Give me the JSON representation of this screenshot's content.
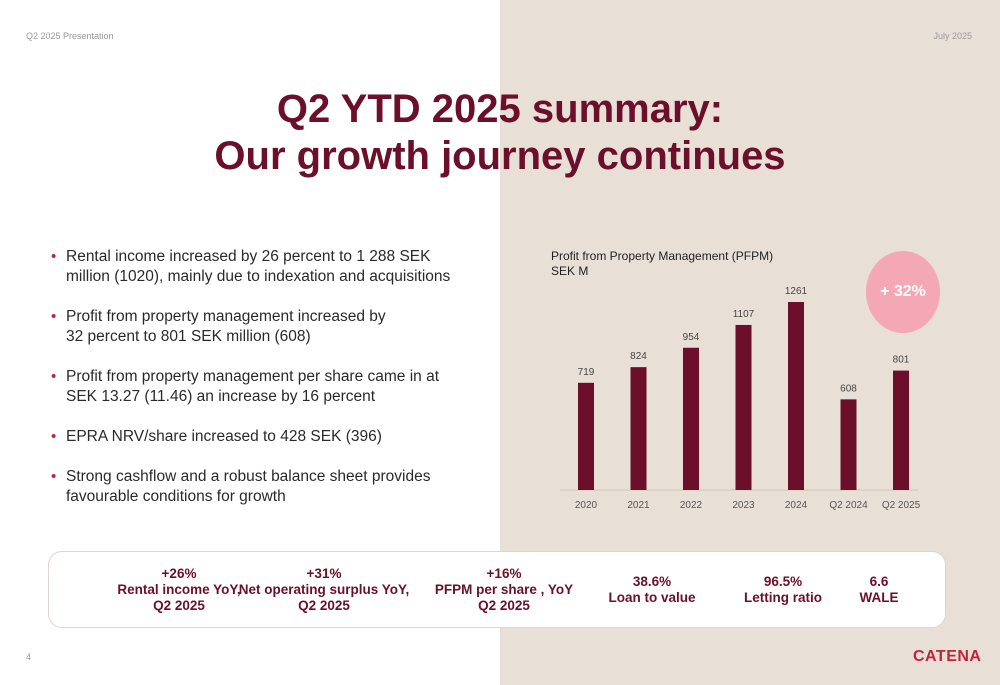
{
  "header": {
    "left": "Q2 2025 Presentation",
    "right": "July 2025"
  },
  "title": {
    "line1": "Q2 YTD 2025 summary:",
    "line2": "Our growth journey continues"
  },
  "bullets": [
    "Rental income increased by 26 percent to 1 288 SEK\nmillion (1020), mainly due to indexation and acquisitions",
    "Profit from property management increased by\n32 percent to 801 SEK million (608)",
    "Profit from property management per share came in at\nSEK 13.27 (11.46) an increase by 16 percent",
    "EPRA NRV/share increased to 428 SEK (396)",
    "Strong cashflow and a robust balance sheet provides\nfavourable conditions for growth"
  ],
  "bullet_symbol": "•",
  "chart_data": {
    "type": "bar",
    "title": "Profit from Property Management (PFPM)\nSEK M",
    "categories": [
      "2020",
      "2021",
      "2022",
      "2023",
      "2024",
      "Q2 2024",
      "Q2 2025"
    ],
    "values": [
      719,
      824,
      954,
      1107,
      1261,
      608,
      801
    ],
    "ylim": [
      0,
      1261
    ],
    "grid": false,
    "legend": "none",
    "bar_color": "#6b0f2a",
    "annotation": "+ 32%"
  },
  "kpis": [
    {
      "lines": [
        "+26%",
        "Rental income YoY,",
        "Q2 2025"
      ]
    },
    {
      "lines": [
        "+31%",
        "Net operating surplus YoY,",
        "Q2 2025"
      ]
    },
    {
      "lines": [
        "+16%",
        "PFPM per share , YoY",
        "Q2 2025"
      ]
    },
    {
      "lines": [
        "38.6%",
        "Loan to value"
      ]
    },
    {
      "lines": [
        "96.5%",
        "Letting ratio"
      ]
    },
    {
      "lines": [
        "6.6",
        "WALE"
      ]
    }
  ],
  "footer": {
    "page_number": "4",
    "logo": "CATENA"
  },
  "colors": {
    "accent": "#6b0f2a",
    "badge": "#f4a8b6",
    "right_panel": "#e8dfd7",
    "logo": "#c0243c"
  }
}
